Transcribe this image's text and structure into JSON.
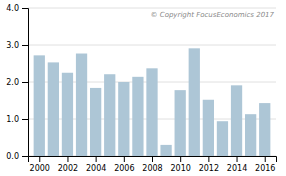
{
  "chart_data": {
    "type": "bar",
    "x": [
      2000,
      2001,
      2002,
      2003,
      2004,
      2005,
      2006,
      2007,
      2008,
      2009,
      2010,
      2011,
      2012,
      2013,
      2014,
      2015,
      2016
    ],
    "values": [
      2.72,
      2.53,
      2.25,
      2.77,
      1.84,
      2.21,
      2.0,
      2.14,
      2.37,
      0.3,
      1.78,
      2.91,
      1.52,
      0.94,
      1.91,
      1.13,
      1.43
    ],
    "color": "#adc6d6",
    "xlim": [
      1999.2,
      2016.8
    ],
    "xticks": [
      2000,
      2002,
      2004,
      2006,
      2008,
      2010,
      2012,
      2014,
      2016
    ],
    "ylim": [
      0,
      4.0
    ],
    "yticks": [
      {
        "value": 0.0,
        "label": "0.0"
      },
      {
        "value": 1.0,
        "label": "1.0"
      },
      {
        "value": 2.0,
        "label": "2.0"
      },
      {
        "value": 3.0,
        "label": "3.0"
      },
      {
        "value": 4.0,
        "label": "4.0"
      }
    ],
    "grid": true,
    "annotation": "© Copyright FocusEconomics  2017"
  }
}
